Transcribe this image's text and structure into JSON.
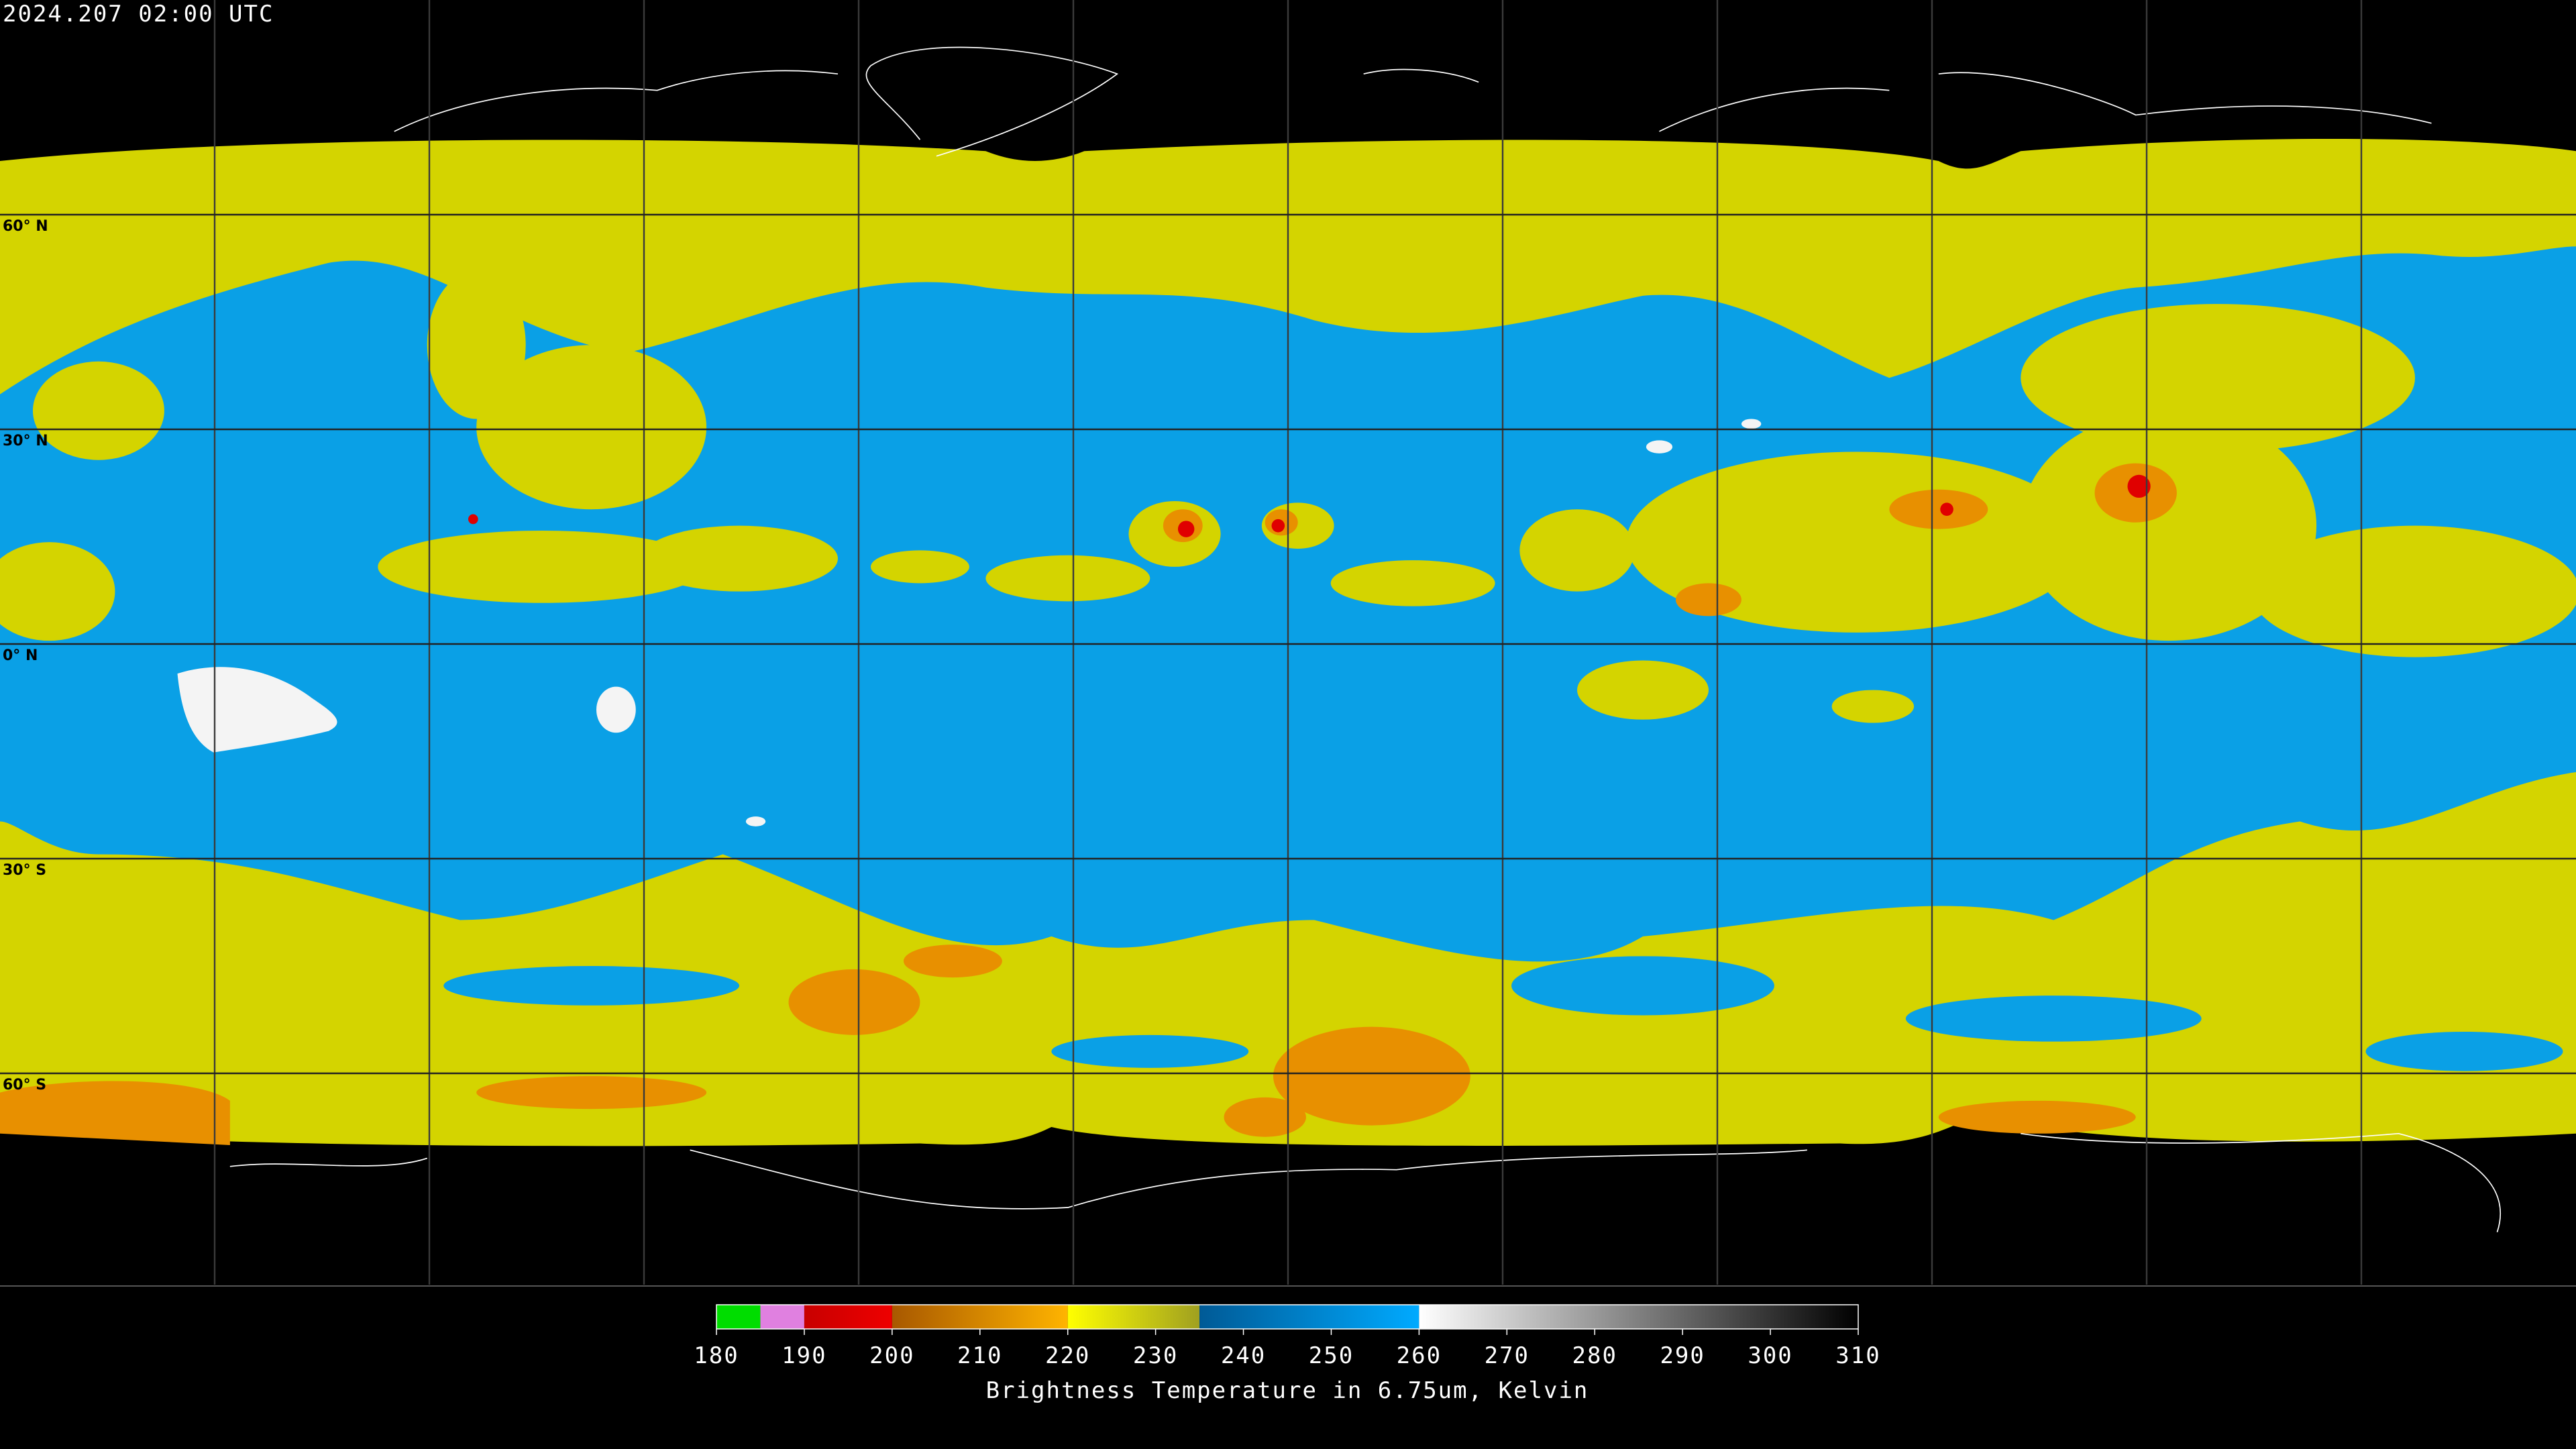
{
  "header": {
    "title": "2024.207 02:00 UTC"
  },
  "map": {
    "latitudes": [
      {
        "value": 60,
        "label": "60° N"
      },
      {
        "value": 30,
        "label": "30° N"
      },
      {
        "value": 0,
        "label": "0° N"
      },
      {
        "value": -30,
        "label": "30° S"
      },
      {
        "value": -60,
        "label": "60° S"
      }
    ]
  },
  "colorbar": {
    "label": "Brightness Temperature in 6.75um, Kelvin",
    "range": [
      180,
      310
    ],
    "ticks": [
      180,
      190,
      200,
      210,
      220,
      230,
      240,
      250,
      260,
      270,
      280,
      290,
      300,
      310
    ],
    "segments": [
      {
        "from": 180,
        "to": 185,
        "colors": [
          "#00dd00",
          "#00dd00"
        ]
      },
      {
        "from": 185,
        "to": 190,
        "colors": [
          "#e080e0",
          "#e080e0"
        ]
      },
      {
        "from": 190,
        "to": 200,
        "colors": [
          "#c80000",
          "#ee0000"
        ]
      },
      {
        "from": 200,
        "to": 220,
        "colors": [
          "#a85800",
          "#ffb400"
        ]
      },
      {
        "from": 220,
        "to": 235,
        "colors": [
          "#ffff00",
          "#a0a020"
        ]
      },
      {
        "from": 235,
        "to": 260,
        "colors": [
          "#005a96",
          "#00aaff"
        ]
      },
      {
        "from": 260,
        "to": 310,
        "colors": [
          "#ffffff",
          "#000000"
        ]
      }
    ]
  }
}
